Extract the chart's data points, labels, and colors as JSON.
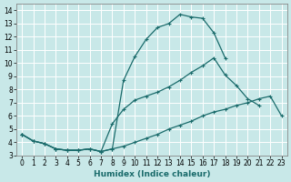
{
  "xlabel": "Humidex (Indice chaleur)",
  "bg_color": "#c8e8e8",
  "grid_color": "#ffffff",
  "line_color": "#1a6b6b",
  "xlim": [
    -0.5,
    23.5
  ],
  "ylim": [
    3,
    14.5
  ],
  "xtick_labels": [
    "0",
    "1",
    "2",
    "3",
    "4",
    "5",
    "6",
    "7",
    "8",
    "9",
    "10",
    "11",
    "12",
    "13",
    "14",
    "15",
    "16",
    "17",
    "18",
    "19",
    "20",
    "21",
    "22",
    "23"
  ],
  "ytick_labels": [
    "3",
    "4",
    "5",
    "6",
    "7",
    "8",
    "9",
    "10",
    "11",
    "12",
    "13",
    "14"
  ],
  "yticks": [
    3,
    4,
    5,
    6,
    7,
    8,
    9,
    10,
    11,
    12,
    13,
    14
  ],
  "line1_x": [
    0,
    1,
    2,
    3,
    4,
    5,
    6,
    7,
    8,
    9,
    10,
    11,
    12,
    13,
    14,
    15,
    16,
    17,
    18,
    19,
    20,
    21,
    22,
    23
  ],
  "line1_y": [
    4.6,
    4.1,
    3.9,
    3.5,
    3.4,
    3.4,
    3.5,
    3.3,
    3.5,
    8.7,
    10.5,
    11.8,
    12.7,
    13.0,
    13.7,
    13.5,
    13.4,
    12.3,
    10.4,
    null,
    null,
    null,
    null,
    null
  ],
  "line2_x": [
    0,
    1,
    2,
    3,
    4,
    5,
    6,
    7,
    8,
    9,
    10,
    11,
    12,
    13,
    14,
    15,
    16,
    17,
    18,
    19,
    20,
    21,
    22,
    23
  ],
  "line2_y": [
    4.6,
    4.1,
    3.9,
    3.5,
    3.4,
    3.4,
    3.5,
    3.3,
    5.4,
    6.5,
    7.2,
    7.5,
    7.8,
    8.2,
    8.7,
    9.3,
    9.8,
    10.4,
    9.1,
    8.3,
    7.3,
    6.8,
    null,
    null
  ],
  "line3_x": [
    0,
    1,
    2,
    3,
    4,
    5,
    6,
    7,
    8,
    9,
    10,
    11,
    12,
    13,
    14,
    15,
    16,
    17,
    18,
    19,
    20,
    21,
    22,
    23
  ],
  "line3_y": [
    4.6,
    4.1,
    3.9,
    3.5,
    3.4,
    3.4,
    3.5,
    3.3,
    3.5,
    3.7,
    4.0,
    4.3,
    4.6,
    5.0,
    5.3,
    5.6,
    6.0,
    6.3,
    6.5,
    6.8,
    7.0,
    7.3,
    7.5,
    6.0
  ]
}
